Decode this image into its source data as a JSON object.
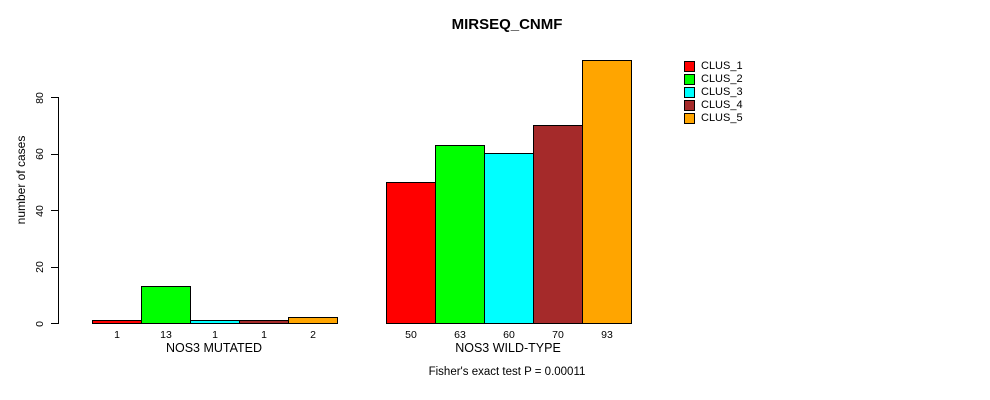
{
  "chart_data": {
    "type": "bar",
    "title": "MIRSEQ_CNMF",
    "ylabel": "number of cases",
    "xlabel": "",
    "ylim": [
      0,
      93
    ],
    "yticks": [
      0,
      20,
      40,
      60,
      80
    ],
    "grid": false,
    "legend_position": "right",
    "categories": [
      "NOS3 MUTATED",
      "NOS3 WILD-TYPE"
    ],
    "series": [
      {
        "name": "CLUS_1",
        "color": "#FF0000",
        "values": [
          1,
          50
        ]
      },
      {
        "name": "CLUS_2",
        "color": "#00FF00",
        "values": [
          13,
          63
        ]
      },
      {
        "name": "CLUS_3",
        "color": "#00FFFF",
        "values": [
          1,
          60
        ]
      },
      {
        "name": "CLUS_4",
        "color": "#A52A2A",
        "values": [
          1,
          70
        ]
      },
      {
        "name": "CLUS_5",
        "color": "#FFA500",
        "values": [
          2,
          93
        ]
      }
    ],
    "bar_value_labels": [
      [
        "1",
        "13",
        "1",
        "1",
        "2"
      ],
      [
        "50",
        "63",
        "60",
        "70",
        "93"
      ]
    ],
    "annotation": "Fisher's exact test P = 0.00011"
  }
}
